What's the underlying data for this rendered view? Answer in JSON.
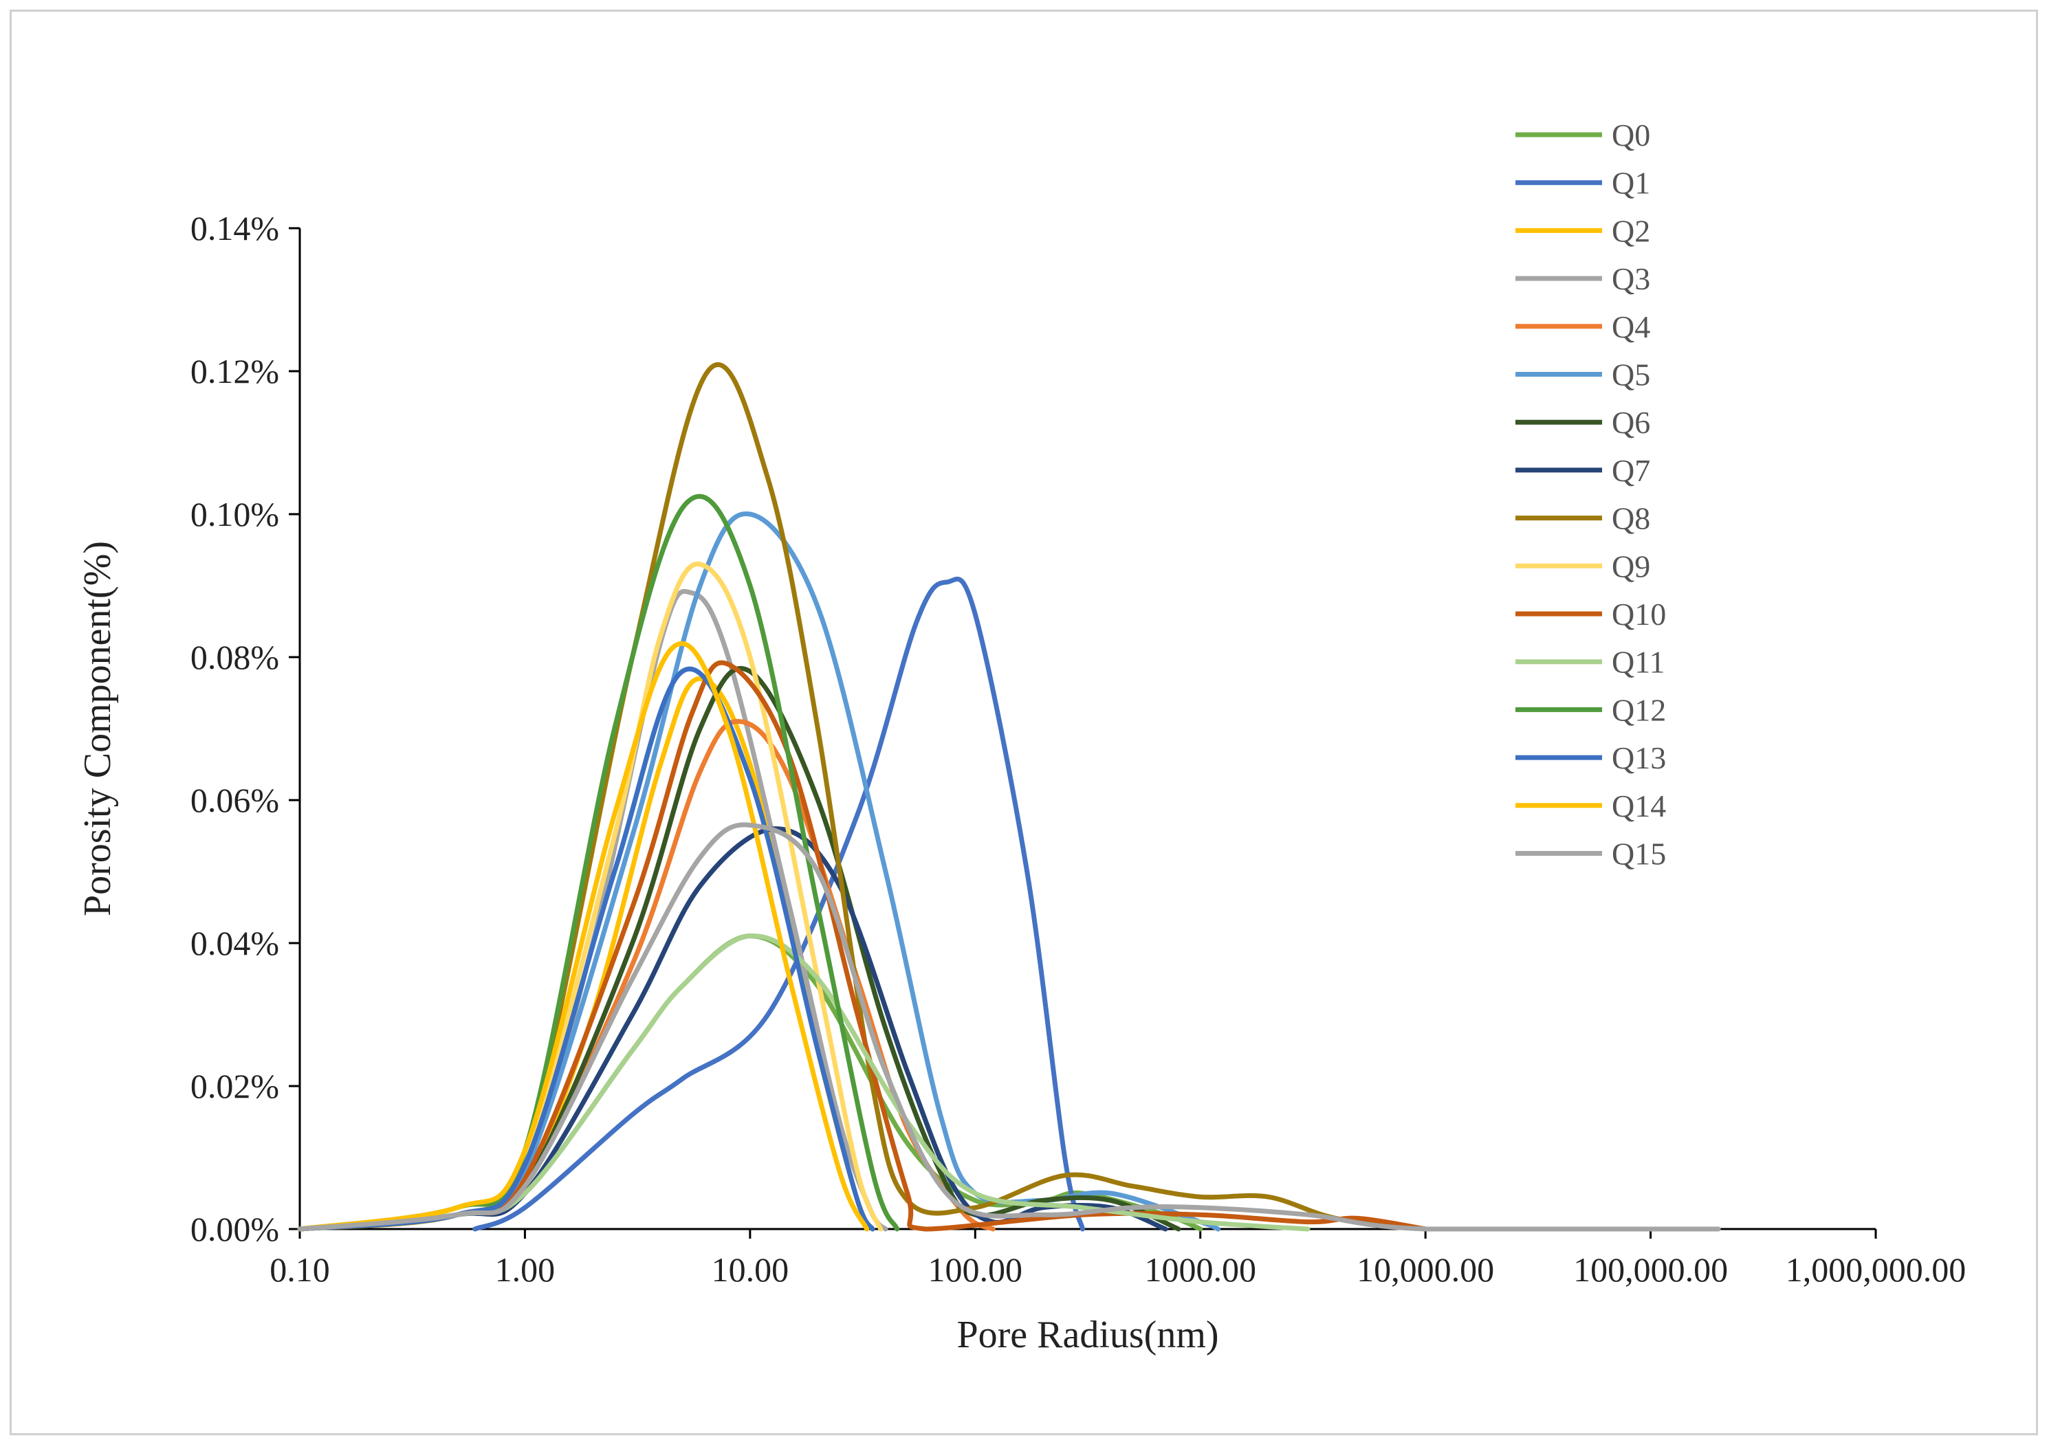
{
  "chart_data": {
    "type": "line",
    "title": "",
    "xlabel": "Pore Radius(nm)",
    "ylabel": "Porosity Component(%)",
    "xscale": "log",
    "xlim": [
      0.1,
      1000000
    ],
    "ylim": [
      0,
      0.14
    ],
    "x_tick_labels": [
      "0.10",
      "1.00",
      "10.00",
      "100.00",
      "1000.00",
      "10,000.00",
      "100,000.00",
      "1,000,000.00"
    ],
    "y_tick_labels": [
      "0.00%",
      "0.02%",
      "0.04%",
      "0.06%",
      "0.08%",
      "0.10%",
      "0.12%",
      "0.14%"
    ],
    "grid": false,
    "legend_position": "top-right",
    "series": [
      {
        "name": "Q0",
        "color": "#70ad47",
        "x": [
          0.1,
          0.5,
          1.0,
          3.0,
          5.0,
          10.0,
          20.0,
          50.0,
          100.0,
          200.0,
          300.0,
          700.0,
          1000.0
        ],
        "y": [
          0.0,
          0.002,
          0.005,
          0.025,
          0.034,
          0.041,
          0.034,
          0.012,
          0.004,
          0.004,
          0.005,
          0.002,
          0.0
        ]
      },
      {
        "name": "Q1",
        "color": "#4472c4",
        "x": [
          0.6,
          1.0,
          3.0,
          5.0,
          12.0,
          30.0,
          55.0,
          75.0,
          100.0,
          170.0,
          250.0,
          300.0
        ],
        "y": [
          0.0,
          0.003,
          0.016,
          0.021,
          0.03,
          0.058,
          0.085,
          0.0905,
          0.086,
          0.05,
          0.01,
          0.0
        ]
      },
      {
        "name": "Q2",
        "color": "#ffc000",
        "x": [
          0.1,
          0.5,
          1.0,
          2.0,
          4.0,
          6.0,
          10.0,
          20.0,
          30.0,
          35.0
        ],
        "y": [
          0.0,
          0.002,
          0.007,
          0.03,
          0.065,
          0.077,
          0.065,
          0.025,
          0.004,
          0.0
        ]
      },
      {
        "name": "Q3",
        "color": "#a5a5a5",
        "x": [
          0.1,
          0.5,
          1.0,
          2.0,
          4.0,
          5.5,
          8.0,
          15.0,
          25.0,
          35.0,
          40.0
        ],
        "y": [
          0.0,
          0.002,
          0.008,
          0.04,
          0.082,
          0.089,
          0.08,
          0.045,
          0.015,
          0.002,
          0.0
        ]
      },
      {
        "name": "Q4",
        "color": "#ed7d31",
        "x": [
          0.1,
          0.5,
          1.0,
          3.0,
          6.0,
          9.0,
          15.0,
          30.0,
          50.0,
          90.0,
          120.0
        ],
        "y": [
          0.0,
          0.002,
          0.006,
          0.037,
          0.064,
          0.071,
          0.063,
          0.035,
          0.014,
          0.002,
          0.0
        ]
      },
      {
        "name": "Q5",
        "color": "#5b9bd5",
        "x": [
          0.1,
          0.5,
          1.0,
          3.0,
          6.0,
          10.0,
          20.0,
          40.0,
          70.0,
          100.0,
          200.0,
          400.0,
          1000.0,
          1200.0
        ],
        "y": [
          0.0,
          0.002,
          0.008,
          0.055,
          0.09,
          0.1,
          0.087,
          0.05,
          0.016,
          0.005,
          0.004,
          0.005,
          0.001,
          0.0
        ]
      },
      {
        "name": "Q6",
        "color": "#375623",
        "x": [
          0.1,
          0.5,
          1.0,
          3.0,
          6.0,
          10.0,
          20.0,
          40.0,
          70.0,
          100.0,
          200.0,
          400.0,
          800.0
        ],
        "y": [
          0.0,
          0.002,
          0.006,
          0.04,
          0.07,
          0.078,
          0.06,
          0.028,
          0.008,
          0.002,
          0.004,
          0.004,
          0.0
        ]
      },
      {
        "name": "Q7",
        "color": "#264478",
        "x": [
          0.1,
          0.5,
          1.0,
          3.0,
          6.0,
          13.0,
          25.0,
          50.0,
          80.0,
          120.0,
          200.0,
          400.0,
          700.0
        ],
        "y": [
          0.0,
          0.002,
          0.005,
          0.03,
          0.048,
          0.056,
          0.048,
          0.022,
          0.006,
          0.001,
          0.003,
          0.003,
          0.0
        ]
      },
      {
        "name": "Q8",
        "color": "#9e7a0c",
        "x": [
          0.1,
          0.5,
          1.0,
          3.0,
          6.5,
          12.0,
          20.0,
          35.0,
          50.0,
          100.0,
          250.0,
          500.0,
          1000.0,
          2000.0,
          4000.0,
          10000.0
        ],
        "y": [
          0.0,
          0.002,
          0.01,
          0.08,
          0.12,
          0.105,
          0.07,
          0.02,
          0.004,
          0.003,
          0.0075,
          0.006,
          0.0045,
          0.0045,
          0.0015,
          0.0
        ]
      },
      {
        "name": "Q9",
        "color": "#ffd966",
        "x": [
          0.1,
          0.5,
          1.0,
          2.5,
          4.0,
          6.0,
          10.0,
          20.0,
          30.0,
          38.0
        ],
        "y": [
          0.0,
          0.003,
          0.01,
          0.055,
          0.083,
          0.093,
          0.08,
          0.035,
          0.008,
          0.0
        ]
      },
      {
        "name": "Q10",
        "color": "#c55a11",
        "x": [
          0.1,
          0.5,
          1.0,
          3.0,
          5.5,
          8.0,
          15.0,
          30.0,
          50.0,
          60.0,
          300.0,
          1000.0,
          3000.0,
          5000.0,
          10000.0
        ],
        "y": [
          0.0,
          0.002,
          0.007,
          0.045,
          0.072,
          0.079,
          0.066,
          0.03,
          0.005,
          0.0,
          0.002,
          0.002,
          0.001,
          0.0015,
          0.0
        ]
      },
      {
        "name": "Q11",
        "color": "#a9d18e",
        "x": [
          0.1,
          0.5,
          1.0,
          3.0,
          5.0,
          10.0,
          20.0,
          50.0,
          100.0,
          300.0,
          1000.0,
          3000.0
        ],
        "y": [
          0.0,
          0.002,
          0.005,
          0.025,
          0.034,
          0.041,
          0.035,
          0.015,
          0.005,
          0.003,
          0.001,
          0.0
        ]
      },
      {
        "name": "Q12",
        "color": "#4f9a3a",
        "x": [
          0.1,
          0.5,
          1.0,
          2.5,
          5.2,
          10.0,
          20.0,
          35.0,
          45.0
        ],
        "y": [
          0.0,
          0.003,
          0.011,
          0.07,
          0.1015,
          0.09,
          0.045,
          0.008,
          0.0
        ]
      },
      {
        "name": "Q13",
        "color": "#3b6fc2",
        "x": [
          0.1,
          0.5,
          1.0,
          2.5,
          5.0,
          10.0,
          20.0,
          30.0,
          35.0
        ],
        "y": [
          0.0,
          0.002,
          0.009,
          0.05,
          0.078,
          0.063,
          0.025,
          0.004,
          0.0
        ]
      },
      {
        "name": "Q14",
        "color": "#ffc000",
        "x": [
          0.1,
          0.5,
          1.0,
          2.5,
          4.6,
          8.0,
          15.0,
          25.0,
          33.0
        ],
        "y": [
          0.0,
          0.003,
          0.011,
          0.058,
          0.0815,
          0.07,
          0.035,
          0.008,
          0.0
        ]
      },
      {
        "name": "Q15",
        "color": "#a5a5a5",
        "x": [
          0.1,
          0.5,
          1.0,
          3.0,
          6.0,
          10.0,
          20.0,
          40.0,
          80.0,
          200.0,
          500.0,
          1000.0,
          3000.0,
          10000.0,
          200000.0
        ],
        "y": [
          0.0,
          0.002,
          0.006,
          0.035,
          0.052,
          0.0565,
          0.05,
          0.022,
          0.004,
          0.002,
          0.003,
          0.003,
          0.002,
          0.0,
          0.0
        ]
      }
    ]
  }
}
